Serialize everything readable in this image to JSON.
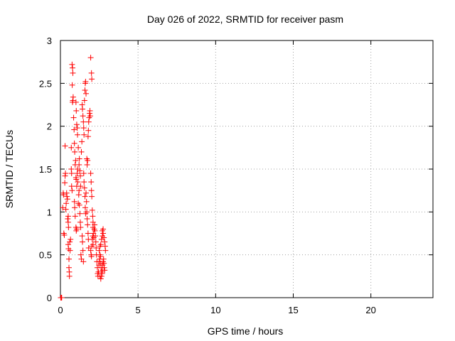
{
  "chart_data": {
    "type": "scatter",
    "title": "Day 026 of 2022, SRMTID for receiver pasm",
    "xlabel": "GPS time / hours",
    "ylabel": "SRMTID / TECUs",
    "xlim": [
      0,
      24
    ],
    "ylim": [
      0,
      3
    ],
    "xticks": [
      0,
      5,
      10,
      15,
      20
    ],
    "yticks": [
      0,
      0.5,
      1,
      1.5,
      2,
      2.5,
      3
    ],
    "xtick_labels": [
      "0",
      "5",
      "10",
      "15",
      "20"
    ],
    "ytick_labels": [
      "0",
      "0.5",
      "1",
      "1.5",
      "2",
      "2.5",
      "3"
    ],
    "grid": true,
    "marker": "+",
    "color": "#ff0000",
    "series": [
      {
        "name": "pasm",
        "points": [
          [
            0.02,
            0.0
          ],
          [
            0.05,
            0.0
          ],
          [
            0.08,
            0.0
          ],
          [
            0.15,
            1.05
          ],
          [
            0.18,
            1.22
          ],
          [
            0.2,
            1.2
          ],
          [
            0.22,
            0.75
          ],
          [
            0.25,
            0.73
          ],
          [
            0.28,
            1.34
          ],
          [
            0.3,
            1.42
          ],
          [
            0.32,
            1.45
          ],
          [
            0.35,
            1.03
          ],
          [
            0.37,
            1.1
          ],
          [
            0.4,
            1.22
          ],
          [
            0.42,
            1.18
          ],
          [
            0.45,
            1.15
          ],
          [
            0.47,
            0.92
          ],
          [
            0.5,
            0.95
          ],
          [
            0.3,
            1.77
          ],
          [
            0.5,
            0.62
          ],
          [
            0.52,
            0.57
          ],
          [
            0.55,
            0.45
          ],
          [
            0.55,
            0.35
          ],
          [
            0.57,
            0.3
          ],
          [
            0.58,
            0.25
          ],
          [
            0.6,
            0.65
          ],
          [
            0.62,
            0.55
          ],
          [
            0.65,
            0.68
          ],
          [
            0.5,
            0.88
          ],
          [
            0.52,
            0.82
          ],
          [
            0.7,
            1.75
          ],
          [
            0.72,
            1.3
          ],
          [
            0.75,
            1.25
          ],
          [
            0.78,
            2.28
          ],
          [
            0.8,
            2.3
          ],
          [
            0.75,
            2.72
          ],
          [
            0.78,
            2.68
          ],
          [
            0.8,
            2.62
          ],
          [
            0.76,
            2.48
          ],
          [
            0.82,
            2.34
          ],
          [
            0.85,
            2.1
          ],
          [
            0.88,
            1.96
          ],
          [
            0.9,
            1.8
          ],
          [
            0.92,
            1.7
          ],
          [
            0.7,
            1.5
          ],
          [
            0.72,
            1.45
          ],
          [
            0.95,
            1.55
          ],
          [
            0.98,
            1.6
          ],
          [
            1.0,
            1.4
          ],
          [
            1.02,
            1.38
          ],
          [
            1.05,
            1.3
          ],
          [
            1.08,
            1.45
          ],
          [
            1.1,
            1.5
          ],
          [
            1.12,
            1.35
          ],
          [
            1.0,
            2.28
          ],
          [
            1.02,
            2.18
          ],
          [
            1.05,
            2.02
          ],
          [
            1.08,
            1.98
          ],
          [
            1.1,
            1.9
          ],
          [
            1.15,
            1.75
          ],
          [
            0.9,
            1.12
          ],
          [
            0.92,
            1.05
          ],
          [
            0.95,
            0.95
          ],
          [
            1.0,
            0.82
          ],
          [
            1.02,
            0.78
          ],
          [
            1.05,
            0.8
          ],
          [
            1.15,
            1.1
          ],
          [
            1.18,
            1.2
          ],
          [
            1.2,
            1.25
          ],
          [
            1.22,
            1.08
          ],
          [
            1.25,
            0.98
          ],
          [
            1.28,
            0.88
          ],
          [
            1.3,
            0.82
          ],
          [
            1.32,
            0.5
          ],
          [
            1.35,
            0.45
          ],
          [
            1.2,
            1.55
          ],
          [
            1.22,
            1.62
          ],
          [
            1.25,
            1.48
          ],
          [
            1.28,
            1.42
          ],
          [
            1.3,
            1.3
          ],
          [
            1.35,
            1.7
          ],
          [
            1.38,
            1.82
          ],
          [
            1.4,
            2.25
          ],
          [
            1.42,
            2.2
          ],
          [
            1.45,
            2.12
          ],
          [
            1.48,
            2.05
          ],
          [
            1.5,
            1.98
          ],
          [
            1.52,
            1.9
          ],
          [
            1.55,
            2.3
          ],
          [
            1.58,
            2.42
          ],
          [
            1.6,
            2.5
          ],
          [
            1.62,
            2.52
          ],
          [
            1.65,
            2.38
          ],
          [
            1.5,
            1.45
          ],
          [
            1.52,
            1.35
          ],
          [
            1.55,
            1.28
          ],
          [
            1.58,
            1.18
          ],
          [
            1.6,
            1.05
          ],
          [
            1.62,
            0.98
          ],
          [
            1.4,
            0.72
          ],
          [
            1.42,
            0.65
          ],
          [
            1.45,
            0.55
          ],
          [
            1.48,
            0.42
          ],
          [
            1.65,
            1.22
          ],
          [
            1.68,
            1.12
          ],
          [
            1.7,
            1.0
          ],
          [
            1.72,
            0.92
          ],
          [
            1.75,
            0.85
          ],
          [
            1.78,
            0.75
          ],
          [
            1.8,
            0.68
          ],
          [
            1.82,
            0.58
          ],
          [
            1.7,
            1.62
          ],
          [
            1.72,
            1.55
          ],
          [
            1.75,
            1.6
          ],
          [
            1.78,
            1.88
          ],
          [
            1.8,
            1.95
          ],
          [
            1.82,
            2.05
          ],
          [
            1.85,
            2.1
          ],
          [
            1.88,
            2.15
          ],
          [
            1.9,
            2.18
          ],
          [
            1.92,
            2.12
          ],
          [
            1.95,
            2.8
          ],
          [
            2.0,
            2.62
          ],
          [
            2.02,
            2.55
          ],
          [
            1.95,
            1.45
          ],
          [
            1.98,
            1.35
          ],
          [
            2.0,
            1.25
          ],
          [
            2.02,
            1.18
          ],
          [
            2.05,
            1.02
          ],
          [
            2.08,
            0.95
          ],
          [
            2.1,
            0.88
          ],
          [
            1.95,
            0.55
          ],
          [
            1.98,
            0.5
          ],
          [
            2.0,
            0.48
          ],
          [
            2.02,
            0.6
          ],
          [
            2.05,
            0.68
          ],
          [
            2.08,
            0.72
          ],
          [
            2.1,
            0.62
          ],
          [
            2.1,
            0.82
          ],
          [
            2.12,
            0.75
          ],
          [
            2.15,
            0.7
          ],
          [
            2.18,
            0.8
          ],
          [
            2.2,
            0.85
          ],
          [
            2.22,
            0.78
          ],
          [
            2.25,
            0.72
          ],
          [
            2.28,
            0.65
          ],
          [
            2.3,
            0.58
          ],
          [
            2.32,
            0.5
          ],
          [
            2.35,
            0.42
          ],
          [
            2.38,
            0.35
          ],
          [
            2.4,
            0.28
          ],
          [
            2.42,
            0.25
          ],
          [
            2.45,
            0.3
          ],
          [
            2.48,
            0.38
          ],
          [
            2.5,
            0.42
          ],
          [
            2.52,
            0.45
          ],
          [
            2.55,
            0.5
          ],
          [
            2.58,
            0.48
          ],
          [
            2.6,
            0.4
          ],
          [
            2.62,
            0.35
          ],
          [
            2.65,
            0.3
          ],
          [
            2.68,
            0.28
          ],
          [
            2.7,
            0.32
          ],
          [
            2.72,
            0.38
          ],
          [
            2.75,
            0.42
          ],
          [
            2.78,
            0.45
          ],
          [
            2.8,
            0.4
          ],
          [
            2.82,
            0.35
          ],
          [
            2.85,
            0.32
          ],
          [
            2.55,
            0.25
          ],
          [
            2.6,
            0.22
          ],
          [
            2.65,
            0.25
          ],
          [
            2.5,
            0.55
          ],
          [
            2.55,
            0.6
          ],
          [
            2.6,
            0.62
          ],
          [
            2.65,
            0.68
          ],
          [
            2.7,
            0.72
          ],
          [
            2.75,
            0.75
          ],
          [
            2.8,
            0.7
          ],
          [
            2.85,
            0.65
          ],
          [
            2.88,
            0.6
          ],
          [
            2.9,
            0.55
          ],
          [
            2.7,
            0.78
          ],
          [
            2.75,
            0.8
          ]
        ]
      }
    ]
  }
}
